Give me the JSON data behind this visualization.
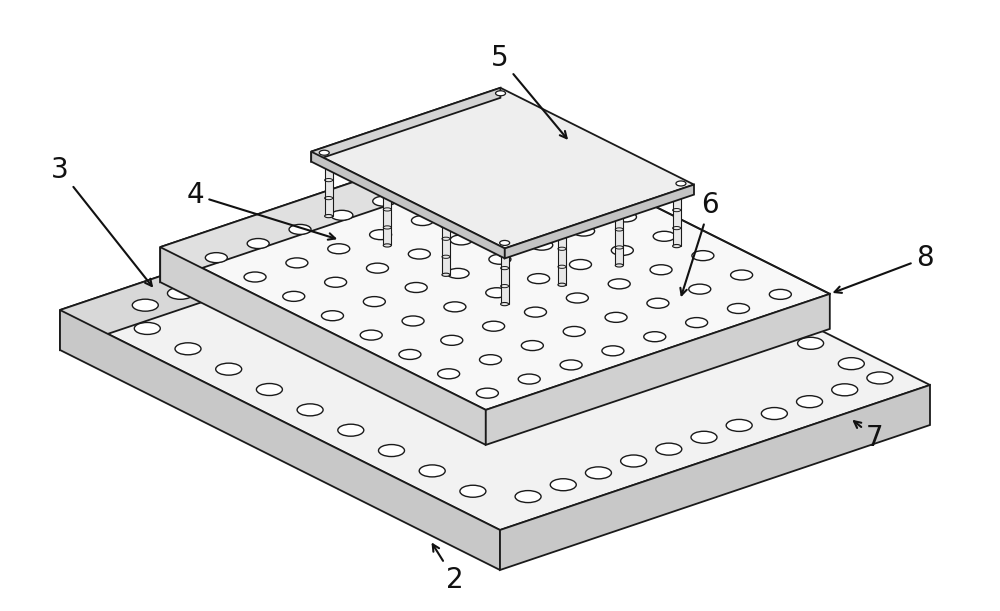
{
  "bg_color": "#ffffff",
  "line_color": "#1a1a1a",
  "fill_top": "#f2f2f2",
  "fill_left": "#d8d8d8",
  "fill_right": "#c8c8c8",
  "fill_inner_top": "#f8f8f8",
  "fill_inner_left": "#e0e0e0",
  "fill_inner_right": "#d0d0d0",
  "fill_flange": "#e8e8e8",
  "fill_flange_side": "#cccccc",
  "fill_block_top": "#eeeeee",
  "fill_block_left": "#d4d4d4",
  "fill_block_right": "#c4c4c4",
  "fill_pillar": "#e4e4e4",
  "fill_hole": "#ffffff",
  "label_fontsize": 20,
  "figsize": [
    10.0,
    6.11
  ],
  "dpi": 100
}
